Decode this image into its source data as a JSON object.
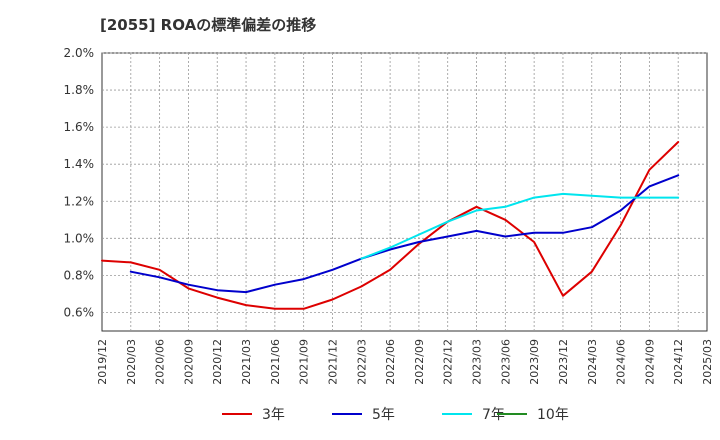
{
  "title": "[2055]  ROAの標準偏差の推移",
  "chart_data": {
    "type": "line",
    "x": [
      "2019/12",
      "2020/03",
      "2020/06",
      "2020/09",
      "2020/12",
      "2021/03",
      "2021/06",
      "2021/09",
      "2021/12",
      "2022/03",
      "2022/06",
      "2022/09",
      "2022/12",
      "2023/03",
      "2023/06",
      "2023/09",
      "2023/12",
      "2024/03",
      "2024/06",
      "2024/09",
      "2024/12",
      "2025/03"
    ],
    "ylim": [
      0.5,
      2.0
    ],
    "yticks": [
      "0.6%",
      "0.8%",
      "1.0%",
      "1.2%",
      "1.4%",
      "1.6%",
      "1.8%",
      "2.0%"
    ],
    "ytick_values": [
      0.6,
      0.8,
      1.0,
      1.2,
      1.4,
      1.6,
      1.8,
      2.0
    ],
    "grid": true,
    "legend_position": "bottom",
    "series": [
      {
        "name": "3年",
        "color": "#dd0000",
        "values": [
          0.88,
          0.87,
          0.83,
          0.73,
          0.68,
          0.64,
          0.62,
          0.62,
          0.67,
          0.74,
          0.83,
          0.97,
          1.09,
          1.17,
          1.1,
          0.98,
          0.69,
          0.82,
          1.07,
          1.37,
          1.52,
          null
        ]
      },
      {
        "name": "5年",
        "color": "#0000cc",
        "values": [
          null,
          0.82,
          0.79,
          0.75,
          0.72,
          0.71,
          0.75,
          0.78,
          0.83,
          0.89,
          0.94,
          0.98,
          1.01,
          1.04,
          1.01,
          1.03,
          1.03,
          1.06,
          1.15,
          1.28,
          1.34,
          null
        ]
      },
      {
        "name": "7年",
        "color": "#00e5ee",
        "values": [
          null,
          null,
          null,
          null,
          null,
          null,
          null,
          null,
          null,
          0.89,
          0.95,
          1.02,
          1.09,
          1.15,
          1.17,
          1.22,
          1.24,
          1.23,
          1.22,
          1.22,
          1.22,
          null
        ]
      },
      {
        "name": "10年",
        "color": "#228b22",
        "values": [
          null,
          null,
          null,
          null,
          null,
          null,
          null,
          null,
          null,
          null,
          null,
          null,
          null,
          null,
          null,
          null,
          null,
          null,
          null,
          null,
          null,
          null
        ]
      }
    ]
  }
}
